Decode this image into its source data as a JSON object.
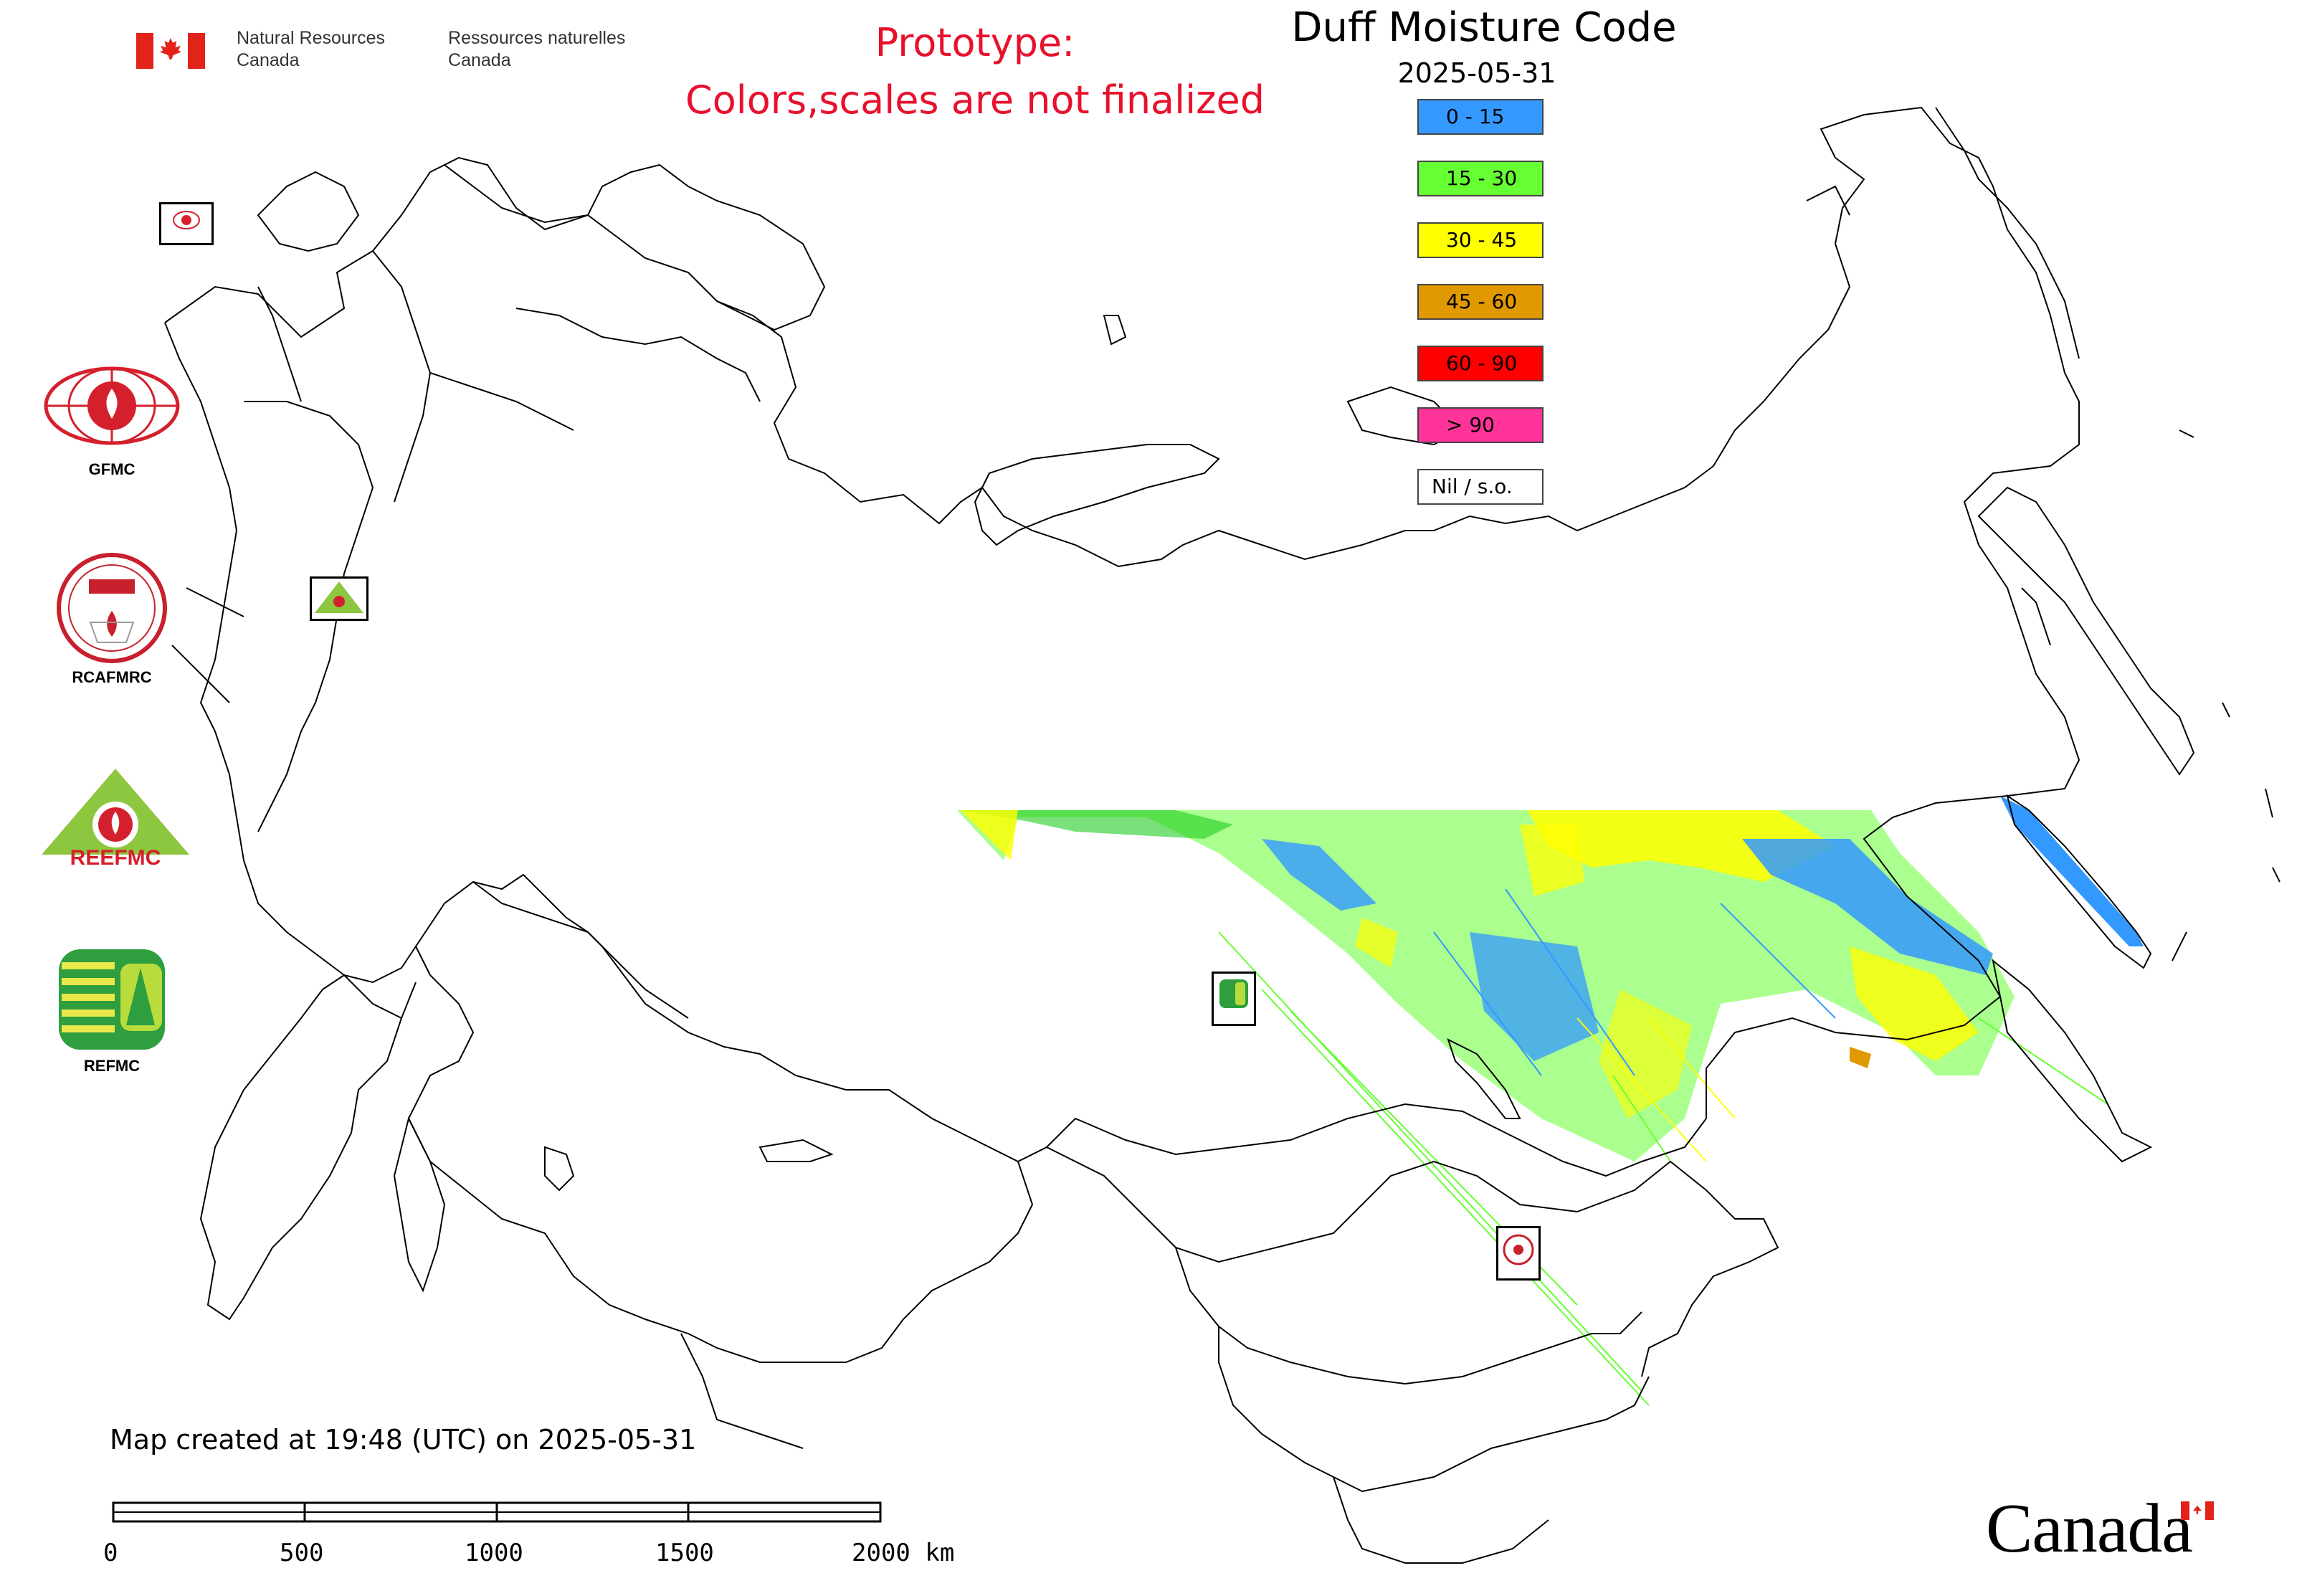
{
  "header": {
    "dept_en_line1": "Natural Resources",
    "dept_en_line2": "Canada",
    "dept_fr_line1": "Ressources naturelles",
    "dept_fr_line2": "Canada",
    "prototype_line1": "Prototype:",
    "prototype_line2": "Colors,scales are not finalized"
  },
  "map": {
    "title": "Duff Moisture Code",
    "date": "2025-05-31",
    "legend": [
      {
        "label": "0 - 15",
        "color": "#3399ff"
      },
      {
        "label": "15 - 30",
        "color": "#66ff33"
      },
      {
        "label": "30 - 45",
        "color": "#ffff00"
      },
      {
        "label": "45 - 60",
        "color": "#e09900"
      },
      {
        "label": "60 - 90",
        "color": "#ff0000"
      },
      {
        "label": "> 90",
        "color": "#ff3399"
      },
      {
        "label": "Nil / s.o.",
        "color": "#ffffff"
      }
    ],
    "created_text": "Map created at 19:48 (UTC) on 2025-05-31",
    "scale_labels": [
      "0",
      "500",
      "1000",
      "1500",
      "2000 km"
    ]
  },
  "logos": {
    "gfmc": "GFMC",
    "rcafmrc": "RCAFMRC",
    "reefmc": "REEFMC",
    "refmc": "REFMC"
  },
  "footer": {
    "wordmark": "Canada"
  }
}
